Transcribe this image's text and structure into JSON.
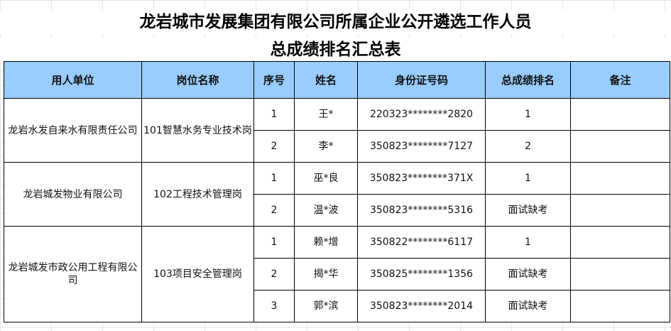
{
  "title_line1": "龙岩城市发展集团有限公司所属企业公开遴选工作人员",
  "title_line2": "总成绩排名汇总表",
  "headers": [
    "用人单位",
    "岗位名称",
    "序号",
    "姓名",
    "身份证号码",
    "总成绩排名",
    "备注"
  ],
  "groups": [
    {
      "unit": "龙岩水发自来水有限责任公司",
      "post": "101智慧水务专业技术岗",
      "rows": [
        {
          "no": "1",
          "name": "王*",
          "id": "220323********2820",
          "rank": "1",
          "note": ""
        },
        {
          "no": "2",
          "name": "李*",
          "id": "350823********7127",
          "rank": "2",
          "note": ""
        }
      ]
    },
    {
      "unit": "龙岩城发物业有限公司",
      "post": "102工程技术管理岗",
      "rows": [
        {
          "no": "1",
          "name": "巫*良",
          "id": "350823********371X",
          "rank": "1",
          "note": ""
        },
        {
          "no": "2",
          "name": "温*波",
          "id": "350823********5316",
          "rank": "面试缺考",
          "note": ""
        }
      ]
    },
    {
      "unit": "龙岩城发市政公用工程有限公司",
      "post": "103项目安全管理岗",
      "rows": [
        {
          "no": "1",
          "name": "赖*增",
          "id": "350822********6117",
          "rank": "1",
          "note": ""
        },
        {
          "no": "2",
          "name": "揭*华",
          "id": "350825********1356",
          "rank": "面试缺考",
          "note": ""
        },
        {
          "no": "3",
          "name": "郭*滨",
          "id": "350823********2014",
          "rank": "面试缺考",
          "note": ""
        }
      ]
    }
  ]
}
